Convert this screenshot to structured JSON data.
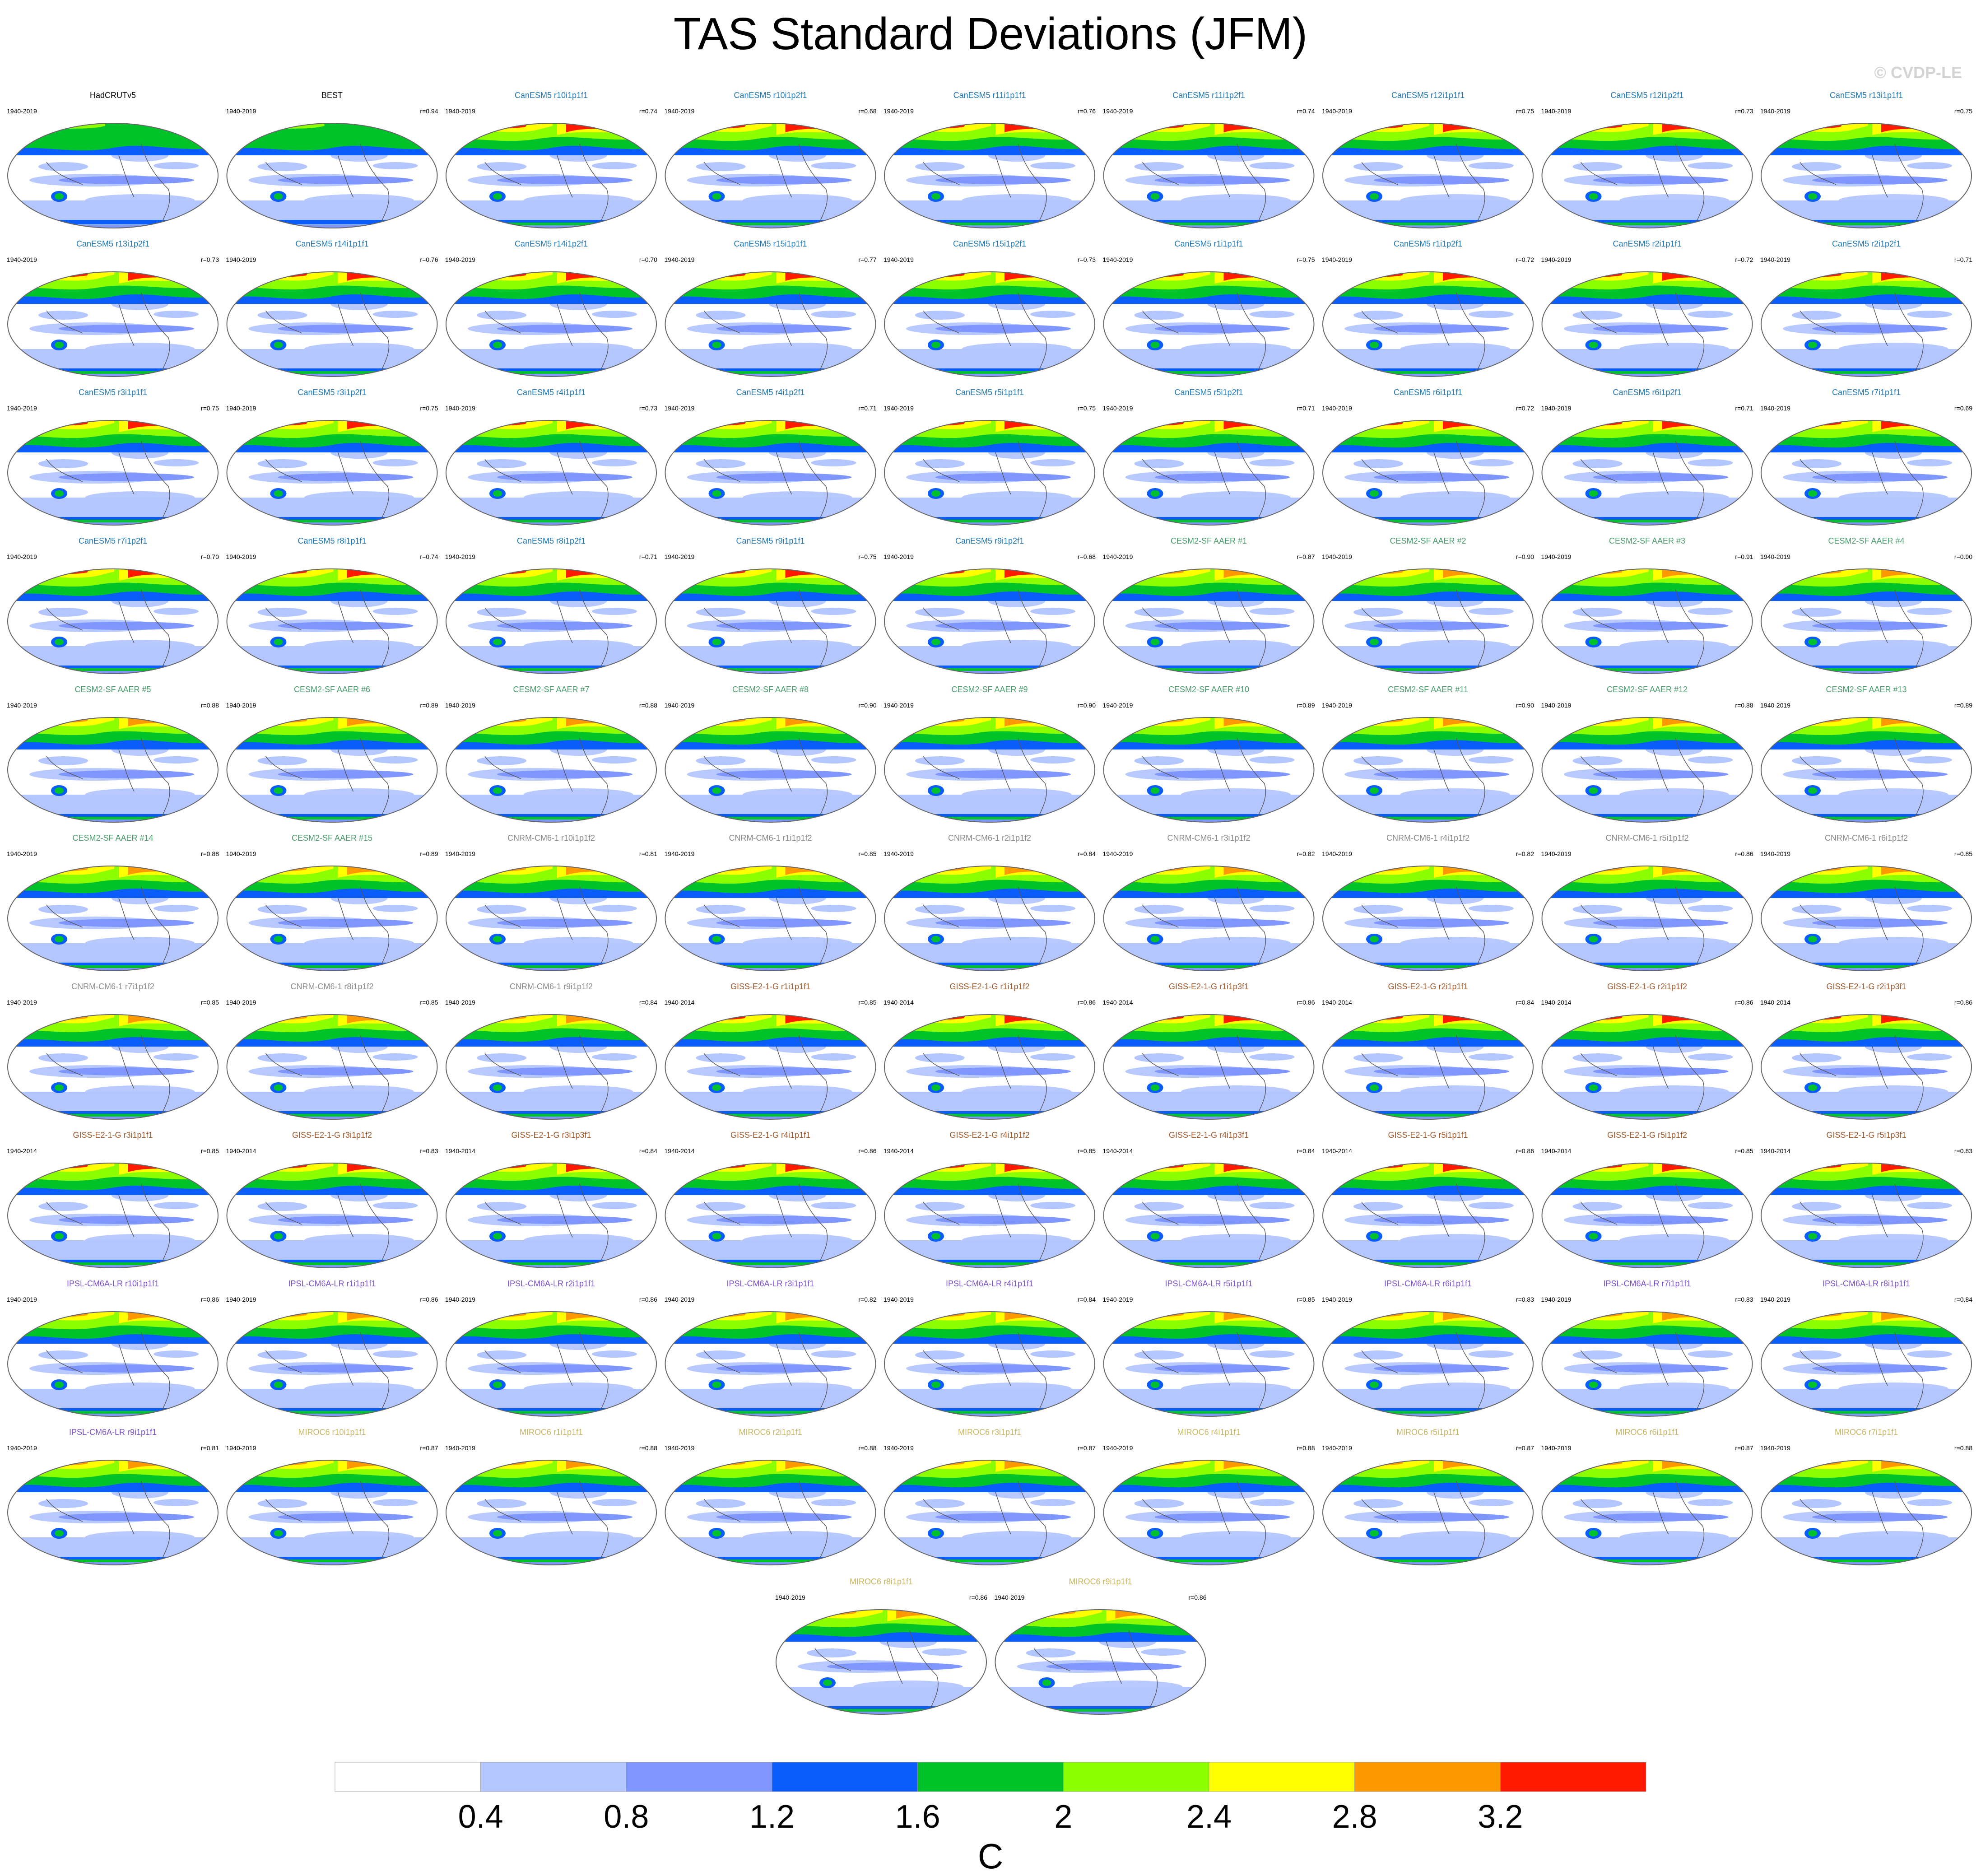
{
  "title": "TAS Standard Deviations (JFM)",
  "watermark": "© CVDP-LE",
  "chart_data": {
    "type": "heatmap",
    "title": "TAS Standard Deviations (JFM)",
    "projection": "global map",
    "panels": [
      {
        "name": "HadCRUTv5",
        "period": "1940-2019",
        "corr": "",
        "group": "obs"
      },
      {
        "name": "BEST",
        "period": "1940-2019",
        "corr": "r=0.94",
        "group": "obs"
      },
      {
        "name": "CanESM5 r10i1p1f1",
        "period": "1940-2019",
        "corr": "r=0.74",
        "group": "CanESM5"
      },
      {
        "name": "CanESM5 r10i1p2f1",
        "period": "1940-2019",
        "corr": "r=0.68",
        "group": "CanESM5"
      },
      {
        "name": "CanESM5 r11i1p1f1",
        "period": "1940-2019",
        "corr": "r=0.76",
        "group": "CanESM5"
      },
      {
        "name": "CanESM5 r11i1p2f1",
        "period": "1940-2019",
        "corr": "r=0.74",
        "group": "CanESM5"
      },
      {
        "name": "CanESM5 r12i1p1f1",
        "period": "1940-2019",
        "corr": "r=0.75",
        "group": "CanESM5"
      },
      {
        "name": "CanESM5 r12i1p2f1",
        "period": "1940-2019",
        "corr": "r=0.73",
        "group": "CanESM5"
      },
      {
        "name": "CanESM5 r13i1p1f1",
        "period": "1940-2019",
        "corr": "r=0.75",
        "group": "CanESM5"
      },
      {
        "name": "CanESM5 r13i1p2f1",
        "period": "1940-2019",
        "corr": "r=0.73",
        "group": "CanESM5"
      },
      {
        "name": "CanESM5 r14i1p1f1",
        "period": "1940-2019",
        "corr": "r=0.76",
        "group": "CanESM5"
      },
      {
        "name": "CanESM5 r14i1p2f1",
        "period": "1940-2019",
        "corr": "r=0.70",
        "group": "CanESM5"
      },
      {
        "name": "CanESM5 r15i1p1f1",
        "period": "1940-2019",
        "corr": "r=0.77",
        "group": "CanESM5"
      },
      {
        "name": "CanESM5 r15i1p2f1",
        "period": "1940-2019",
        "corr": "r=0.73",
        "group": "CanESM5"
      },
      {
        "name": "CanESM5 r1i1p1f1",
        "period": "1940-2019",
        "corr": "r=0.75",
        "group": "CanESM5"
      },
      {
        "name": "CanESM5 r1i1p2f1",
        "period": "1940-2019",
        "corr": "r=0.72",
        "group": "CanESM5"
      },
      {
        "name": "CanESM5 r2i1p1f1",
        "period": "1940-2019",
        "corr": "r=0.72",
        "group": "CanESM5"
      },
      {
        "name": "CanESM5 r2i1p2f1",
        "period": "1940-2019",
        "corr": "r=0.71",
        "group": "CanESM5"
      },
      {
        "name": "CanESM5 r3i1p1f1",
        "period": "1940-2019",
        "corr": "r=0.75",
        "group": "CanESM5"
      },
      {
        "name": "CanESM5 r3i1p2f1",
        "period": "1940-2019",
        "corr": "r=0.75",
        "group": "CanESM5"
      },
      {
        "name": "CanESM5 r4i1p1f1",
        "period": "1940-2019",
        "corr": "r=0.73",
        "group": "CanESM5"
      },
      {
        "name": "CanESM5 r4i1p2f1",
        "period": "1940-2019",
        "corr": "r=0.71",
        "group": "CanESM5"
      },
      {
        "name": "CanESM5 r5i1p1f1",
        "period": "1940-2019",
        "corr": "r=0.75",
        "group": "CanESM5"
      },
      {
        "name": "CanESM5 r5i1p2f1",
        "period": "1940-2019",
        "corr": "r=0.71",
        "group": "CanESM5"
      },
      {
        "name": "CanESM5 r6i1p1f1",
        "period": "1940-2019",
        "corr": "r=0.72",
        "group": "CanESM5"
      },
      {
        "name": "CanESM5 r6i1p2f1",
        "period": "1940-2019",
        "corr": "r=0.71",
        "group": "CanESM5"
      },
      {
        "name": "CanESM5 r7i1p1f1",
        "period": "1940-2019",
        "corr": "r=0.69",
        "group": "CanESM5"
      },
      {
        "name": "CanESM5 r7i1p2f1",
        "period": "1940-2019",
        "corr": "r=0.70",
        "group": "CanESM5"
      },
      {
        "name": "CanESM5 r8i1p1f1",
        "period": "1940-2019",
        "corr": "r=0.74",
        "group": "CanESM5"
      },
      {
        "name": "CanESM5 r8i1p2f1",
        "period": "1940-2019",
        "corr": "r=0.71",
        "group": "CanESM5"
      },
      {
        "name": "CanESM5 r9i1p1f1",
        "period": "1940-2019",
        "corr": "r=0.75",
        "group": "CanESM5"
      },
      {
        "name": "CanESM5 r9i1p2f1",
        "period": "1940-2019",
        "corr": "r=0.68",
        "group": "CanESM5"
      },
      {
        "name": "CESM2-SF AAER #1",
        "period": "1940-2019",
        "corr": "r=0.87",
        "group": "CESM2"
      },
      {
        "name": "CESM2-SF AAER #2",
        "period": "1940-2019",
        "corr": "r=0.90",
        "group": "CESM2"
      },
      {
        "name": "CESM2-SF AAER #3",
        "period": "1940-2019",
        "corr": "r=0.91",
        "group": "CESM2"
      },
      {
        "name": "CESM2-SF AAER #4",
        "period": "1940-2019",
        "corr": "r=0.90",
        "group": "CESM2"
      },
      {
        "name": "CESM2-SF AAER #5",
        "period": "1940-2019",
        "corr": "r=0.88",
        "group": "CESM2"
      },
      {
        "name": "CESM2-SF AAER #6",
        "period": "1940-2019",
        "corr": "r=0.89",
        "group": "CESM2"
      },
      {
        "name": "CESM2-SF AAER #7",
        "period": "1940-2019",
        "corr": "r=0.88",
        "group": "CESM2"
      },
      {
        "name": "CESM2-SF AAER #8",
        "period": "1940-2019",
        "corr": "r=0.90",
        "group": "CESM2"
      },
      {
        "name": "CESM2-SF AAER #9",
        "period": "1940-2019",
        "corr": "r=0.90",
        "group": "CESM2"
      },
      {
        "name": "CESM2-SF AAER #10",
        "period": "1940-2019",
        "corr": "r=0.89",
        "group": "CESM2"
      },
      {
        "name": "CESM2-SF AAER #11",
        "period": "1940-2019",
        "corr": "r=0.90",
        "group": "CESM2"
      },
      {
        "name": "CESM2-SF AAER #12",
        "period": "1940-2019",
        "corr": "r=0.88",
        "group": "CESM2"
      },
      {
        "name": "CESM2-SF AAER #13",
        "period": "1940-2019",
        "corr": "r=0.89",
        "group": "CESM2"
      },
      {
        "name": "CESM2-SF AAER #14",
        "period": "1940-2019",
        "corr": "r=0.88",
        "group": "CESM2"
      },
      {
        "name": "CESM2-SF AAER #15",
        "period": "1940-2019",
        "corr": "r=0.89",
        "group": "CESM2"
      },
      {
        "name": "CNRM-CM6-1 r10i1p1f2",
        "period": "1940-2019",
        "corr": "r=0.81",
        "group": "CNRM"
      },
      {
        "name": "CNRM-CM6-1 r1i1p1f2",
        "period": "1940-2019",
        "corr": "r=0.85",
        "group": "CNRM"
      },
      {
        "name": "CNRM-CM6-1 r2i1p1f2",
        "period": "1940-2019",
        "corr": "r=0.84",
        "group": "CNRM"
      },
      {
        "name": "CNRM-CM6-1 r3i1p1f2",
        "period": "1940-2019",
        "corr": "r=0.82",
        "group": "CNRM"
      },
      {
        "name": "CNRM-CM6-1 r4i1p1f2",
        "period": "1940-2019",
        "corr": "r=0.82",
        "group": "CNRM"
      },
      {
        "name": "CNRM-CM6-1 r5i1p1f2",
        "period": "1940-2019",
        "corr": "r=0.86",
        "group": "CNRM"
      },
      {
        "name": "CNRM-CM6-1 r6i1p1f2",
        "period": "1940-2019",
        "corr": "r=0.85",
        "group": "CNRM"
      },
      {
        "name": "CNRM-CM6-1 r7i1p1f2",
        "period": "1940-2019",
        "corr": "r=0.85",
        "group": "CNRM"
      },
      {
        "name": "CNRM-CM6-1 r8i1p1f2",
        "period": "1940-2019",
        "corr": "r=0.85",
        "group": "CNRM"
      },
      {
        "name": "CNRM-CM6-1 r9i1p1f2",
        "period": "1940-2019",
        "corr": "r=0.84",
        "group": "CNRM"
      },
      {
        "name": "GISS-E2-1-G r1i1p1f1",
        "period": "1940-2014",
        "corr": "r=0.85",
        "group": "GISS"
      },
      {
        "name": "GISS-E2-1-G r1i1p1f2",
        "period": "1940-2014",
        "corr": "r=0.86",
        "group": "GISS"
      },
      {
        "name": "GISS-E2-1-G r1i1p3f1",
        "period": "1940-2014",
        "corr": "r=0.86",
        "group": "GISS"
      },
      {
        "name": "GISS-E2-1-G r2i1p1f1",
        "period": "1940-2014",
        "corr": "r=0.84",
        "group": "GISS"
      },
      {
        "name": "GISS-E2-1-G r2i1p1f2",
        "period": "1940-2014",
        "corr": "r=0.86",
        "group": "GISS"
      },
      {
        "name": "GISS-E2-1-G r2i1p3f1",
        "period": "1940-2014",
        "corr": "r=0.86",
        "group": "GISS"
      },
      {
        "name": "GISS-E2-1-G r3i1p1f1",
        "period": "1940-2014",
        "corr": "r=0.85",
        "group": "GISS"
      },
      {
        "name": "GISS-E2-1-G r3i1p1f2",
        "period": "1940-2014",
        "corr": "r=0.83",
        "group": "GISS"
      },
      {
        "name": "GISS-E2-1-G r3i1p3f1",
        "period": "1940-2014",
        "corr": "r=0.84",
        "group": "GISS"
      },
      {
        "name": "GISS-E2-1-G r4i1p1f1",
        "period": "1940-2014",
        "corr": "r=0.86",
        "group": "GISS"
      },
      {
        "name": "GISS-E2-1-G r4i1p1f2",
        "period": "1940-2014",
        "corr": "r=0.85",
        "group": "GISS"
      },
      {
        "name": "GISS-E2-1-G r4i1p3f1",
        "period": "1940-2014",
        "corr": "r=0.84",
        "group": "GISS"
      },
      {
        "name": "GISS-E2-1-G r5i1p1f1",
        "period": "1940-2014",
        "corr": "r=0.86",
        "group": "GISS"
      },
      {
        "name": "GISS-E2-1-G r5i1p1f2",
        "period": "1940-2014",
        "corr": "r=0.85",
        "group": "GISS"
      },
      {
        "name": "GISS-E2-1-G r5i1p3f1",
        "period": "1940-2014",
        "corr": "r=0.83",
        "group": "GISS"
      },
      {
        "name": "IPSL-CM6A-LR r10i1p1f1",
        "period": "1940-2019",
        "corr": "r=0.86",
        "group": "IPSL"
      },
      {
        "name": "IPSL-CM6A-LR r1i1p1f1",
        "period": "1940-2019",
        "corr": "r=0.86",
        "group": "IPSL"
      },
      {
        "name": "IPSL-CM6A-LR r2i1p1f1",
        "period": "1940-2019",
        "corr": "r=0.86",
        "group": "IPSL"
      },
      {
        "name": "IPSL-CM6A-LR r3i1p1f1",
        "period": "1940-2019",
        "corr": "r=0.82",
        "group": "IPSL"
      },
      {
        "name": "IPSL-CM6A-LR r4i1p1f1",
        "period": "1940-2019",
        "corr": "r=0.84",
        "group": "IPSL"
      },
      {
        "name": "IPSL-CM6A-LR r5i1p1f1",
        "period": "1940-2019",
        "corr": "r=0.85",
        "group": "IPSL"
      },
      {
        "name": "IPSL-CM6A-LR r6i1p1f1",
        "period": "1940-2019",
        "corr": "r=0.83",
        "group": "IPSL"
      },
      {
        "name": "IPSL-CM6A-LR r7i1p1f1",
        "period": "1940-2019",
        "corr": "r=0.83",
        "group": "IPSL"
      },
      {
        "name": "IPSL-CM6A-LR r8i1p1f1",
        "period": "1940-2019",
        "corr": "r=0.84",
        "group": "IPSL"
      },
      {
        "name": "IPSL-CM6A-LR r9i1p1f1",
        "period": "1940-2019",
        "corr": "r=0.81",
        "group": "IPSL"
      },
      {
        "name": "MIROC6 r10i1p1f1",
        "period": "1940-2019",
        "corr": "r=0.87",
        "group": "MIROC6"
      },
      {
        "name": "MIROC6 r1i1p1f1",
        "period": "1940-2019",
        "corr": "r=0.88",
        "group": "MIROC6"
      },
      {
        "name": "MIROC6 r2i1p1f1",
        "period": "1940-2019",
        "corr": "r=0.88",
        "group": "MIROC6"
      },
      {
        "name": "MIROC6 r3i1p1f1",
        "period": "1940-2019",
        "corr": "r=0.87",
        "group": "MIROC6"
      },
      {
        "name": "MIROC6 r4i1p1f1",
        "period": "1940-2019",
        "corr": "r=0.88",
        "group": "MIROC6"
      },
      {
        "name": "MIROC6 r5i1p1f1",
        "period": "1940-2019",
        "corr": "r=0.87",
        "group": "MIROC6"
      },
      {
        "name": "MIROC6 r6i1p1f1",
        "period": "1940-2019",
        "corr": "r=0.87",
        "group": "MIROC6"
      },
      {
        "name": "MIROC6 r7i1p1f1",
        "period": "1940-2019",
        "corr": "r=0.88",
        "group": "MIROC6"
      },
      {
        "name": "MIROC6 r8i1p1f1",
        "period": "1940-2019",
        "corr": "r=0.86",
        "group": "MIROC6"
      },
      {
        "name": "MIROC6 r9i1p1f1",
        "period": "1940-2019",
        "corr": "r=0.86",
        "group": "MIROC6"
      }
    ],
    "group_colors": {
      "obs": "#000000",
      "CanESM5": "#1f78b4",
      "CESM2": "#4a9e6e",
      "CNRM": "#8a8a8a",
      "GISS": "#a05a2c",
      "IPSL": "#7b52c9",
      "MIROC6": "#c8b560"
    },
    "colorbar": {
      "levels": [
        0.4,
        0.8,
        1.2,
        1.6,
        2,
        2.4,
        2.8,
        3.2
      ],
      "tick_labels": [
        "0.4",
        "0.8",
        "1.2",
        "1.6",
        "2",
        "2.4",
        "2.8",
        "3.2"
      ],
      "colors": [
        "#ffffff",
        "#b4c6ff",
        "#7f96ff",
        "#0a5dfa",
        "#00c22b",
        "#8cff00",
        "#ffff00",
        "#ff9900",
        "#ff1a00"
      ],
      "units": "C"
    }
  }
}
